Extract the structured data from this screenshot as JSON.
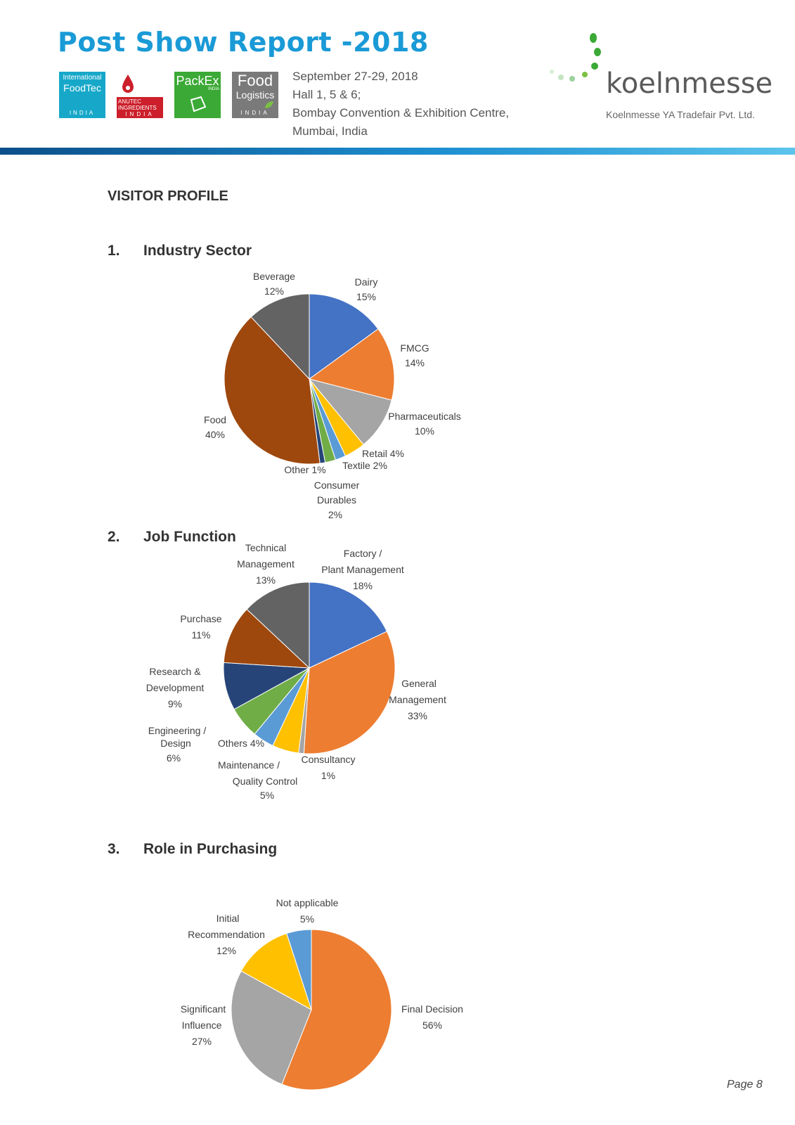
{
  "header": {
    "title": "Post Show Report -2018",
    "event_info": [
      "September 27-29, 2018",
      "Hall 1, 5 & 6;",
      "Bombay Convention & Exhibition Centre,",
      "Mumbai, India"
    ],
    "logos": [
      {
        "lines": [
          "International",
          "FoodTec"
        ],
        "bottom": "INDIA",
        "color": "#17a8c9"
      },
      {
        "lines": [
          "ANUTEC",
          "INGREDIENTS"
        ],
        "bottom": "INDIA",
        "color": "#cc1f2b"
      },
      {
        "lines": [
          "PackEx"
        ],
        "bottom": "INDIA",
        "color": "#3aa935"
      },
      {
        "lines": [
          "Food",
          "Logistics"
        ],
        "bottom": "INDIA",
        "color": "#7a7a7a"
      }
    ],
    "brand": "koelnmesse",
    "brand_subtitle": "Koelnmesse YA Tradefair Pvt. Ltd.",
    "brand_colors": {
      "dot_dark": "#3aa935",
      "dot_light": "#9bd19a"
    }
  },
  "section_title": "VISITOR PROFILE",
  "headings": [
    {
      "num": "1.",
      "label": "Industry Sector"
    },
    {
      "num": "2.",
      "label": "Job Function"
    },
    {
      "num": "3.",
      "label": "Role in Purchasing"
    }
  ],
  "chart_data": [
    {
      "type": "pie",
      "title": "",
      "slices": [
        {
          "label": "Dairy",
          "value": 15,
          "pct": "15%",
          "color": "#4472c4"
        },
        {
          "label": "FMCG",
          "value": 14,
          "pct": "14%",
          "color": "#ed7d31"
        },
        {
          "label": "Pharmaceuticals",
          "value": 10,
          "pct": "10%",
          "color": "#a5a5a5"
        },
        {
          "label": "Retail",
          "value": 4,
          "pct": "4%",
          "color": "#ffc000"
        },
        {
          "label": "Textile",
          "value": 2,
          "pct": "2%",
          "color": "#5b9bd5"
        },
        {
          "label": "Consumer Durables",
          "value": 2,
          "pct": "2%",
          "color": "#70ad47"
        },
        {
          "label": "Other",
          "value": 1,
          "pct": "1%",
          "color": "#264478"
        },
        {
          "label": "Food",
          "value": 40,
          "pct": "40%",
          "color": "#9e480e"
        },
        {
          "label": "Beverage",
          "value": 12,
          "pct": "12%",
          "color": "#636363"
        }
      ]
    },
    {
      "type": "pie",
      "title": "",
      "slices": [
        {
          "label": "Factory / Plant Management",
          "value": 18,
          "pct": "18%",
          "color": "#4472c4"
        },
        {
          "label": "General Management",
          "value": 33,
          "pct": "33%",
          "color": "#ed7d31"
        },
        {
          "label": "Consultancy",
          "value": 1,
          "pct": "1%",
          "color": "#a5a5a5"
        },
        {
          "label": "Maintenance / Quality Control",
          "value": 5,
          "pct": "5%",
          "color": "#ffc000"
        },
        {
          "label": "Others",
          "value": 4,
          "pct": "4%",
          "color": "#5b9bd5"
        },
        {
          "label": "Engineering / Design",
          "value": 6,
          "pct": "6%",
          "color": "#70ad47"
        },
        {
          "label": "Research & Development",
          "value": 9,
          "pct": "9%",
          "color": "#264478"
        },
        {
          "label": "Purchase",
          "value": 11,
          "pct": "11%",
          "color": "#9e480e"
        },
        {
          "label": "Technical Management",
          "value": 13,
          "pct": "13%",
          "color": "#636363"
        }
      ]
    },
    {
      "type": "pie",
      "title": "",
      "slices": [
        {
          "label": "Final Decision",
          "value": 56,
          "pct": "56%",
          "color": "#ed7d31"
        },
        {
          "label": "Significant Influence",
          "value": 27,
          "pct": "27%",
          "color": "#a5a5a5"
        },
        {
          "label": "Initial Recommendation",
          "value": 12,
          "pct": "12%",
          "color": "#ffc000"
        },
        {
          "label": "Not applicable",
          "value": 5,
          "pct": "5%",
          "color": "#5b9bd5"
        }
      ]
    }
  ],
  "page_number": "Page  8"
}
